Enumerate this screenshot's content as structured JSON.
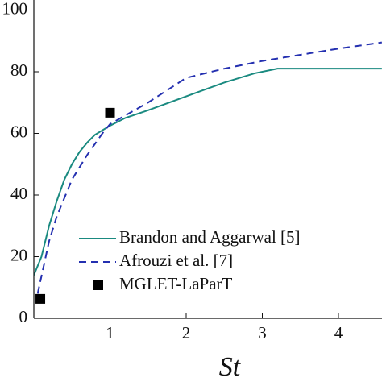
{
  "chart_data": {
    "type": "line",
    "xlabel": "St",
    "xlim": [
      0,
      4.57
    ],
    "ylim": [
      0,
      103
    ],
    "xticks": [
      1,
      2,
      3,
      4
    ],
    "yticks": [
      0,
      20,
      40,
      60,
      80,
      100
    ],
    "legend": "lower right",
    "series": [
      {
        "name": "Brandon and Aggarwal [5]",
        "color": "#1a8a80",
        "style": "solid",
        "x": [
          0,
          0.1,
          0.2,
          0.3,
          0.4,
          0.5,
          0.6,
          0.7,
          0.8,
          0.9,
          1.0,
          1.2,
          1.5,
          2.0,
          2.5,
          2.9,
          3.2,
          3.5,
          4.0,
          4.57
        ],
        "values": [
          14,
          20,
          30,
          38,
          45,
          50,
          54,
          57,
          59.5,
          61,
          62.5,
          65,
          67.5,
          72,
          76.5,
          79.5,
          81,
          81,
          81,
          81
        ]
      },
      {
        "name": "Afrouzi et al. [7]",
        "color": "#2430b0",
        "style": "dashed",
        "x": [
          0.05,
          0.2,
          0.3,
          0.5,
          0.7,
          0.9,
          1.0,
          1.5,
          2.0,
          2.5,
          3.0,
          3.5,
          4.0,
          4.57
        ],
        "values": [
          8,
          25,
          33,
          45,
          53,
          60,
          63,
          70,
          78,
          81,
          83.5,
          85.5,
          87.5,
          89.5
        ]
      },
      {
        "name": "MGLET-LaParT",
        "color": "#000000",
        "style": "marker",
        "x": [
          0.085,
          1.0
        ],
        "values": [
          6.3,
          66.7
        ]
      }
    ]
  }
}
